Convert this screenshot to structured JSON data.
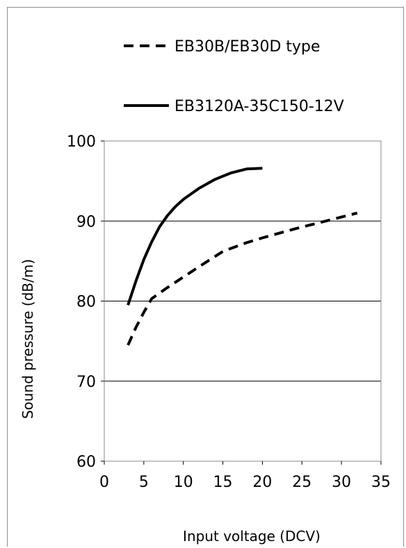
{
  "chart_data": {
    "type": "line",
    "title": "",
    "xlabel": "Input voltage (DCV)",
    "ylabel": "Sound pressure (dB/m)",
    "xlim": [
      0,
      35
    ],
    "ylim": [
      60,
      100
    ],
    "xticks": [
      0,
      5,
      10,
      15,
      20,
      25,
      30,
      35
    ],
    "yticks": [
      60,
      70,
      80,
      90,
      100
    ],
    "grid": "horizontal",
    "legend_position": "top",
    "series": [
      {
        "name": "EB30B/EB30D type",
        "style": "dashed",
        "color": "#000000",
        "x": [
          3,
          4,
          5,
          6,
          8,
          10,
          12,
          15,
          18,
          20,
          24,
          28,
          32
        ],
        "y": [
          74.5,
          76.7,
          78.6,
          80.3,
          81.7,
          83,
          84.3,
          86.2,
          87.3,
          87.9,
          89,
          90,
          91
        ]
      },
      {
        "name": "EB3120A-35C150-12V",
        "style": "solid",
        "color": "#000000",
        "x": [
          3,
          4,
          5,
          6,
          7,
          8,
          9,
          10,
          12,
          14,
          16,
          18,
          20
        ],
        "y": [
          79.5,
          82.5,
          85.2,
          87.4,
          89.3,
          90.7,
          91.8,
          92.7,
          94.1,
          95.2,
          96,
          96.5,
          96.6
        ]
      }
    ]
  }
}
